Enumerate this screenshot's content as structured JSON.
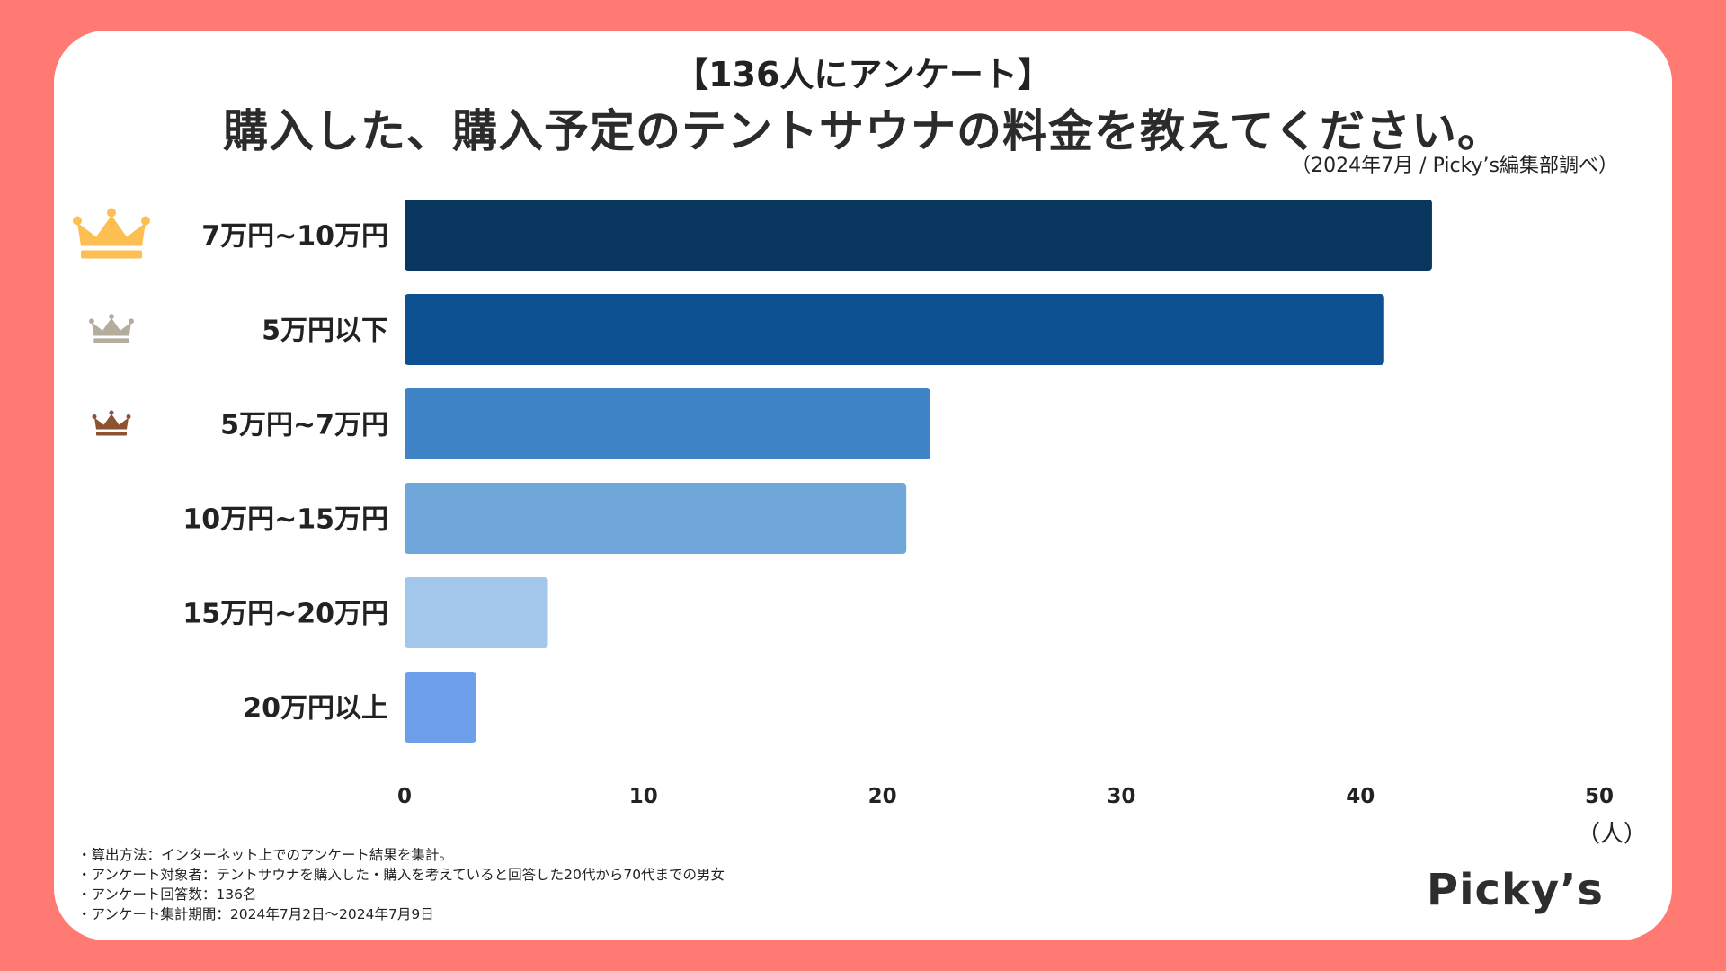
{
  "header": {
    "kicker": "【136人にアンケート】",
    "title": "購入した、購入予定のテントサウナの料金を教えてください。",
    "source": "（2024年7月 / Picky’s編集部調べ）"
  },
  "chart_data": {
    "type": "bar",
    "orientation": "horizontal",
    "categories": [
      "7万円~10万円",
      "5万円以下",
      "5万円~7万円",
      "10万円~15万円",
      "15万円~20万円",
      "20万円以上"
    ],
    "values": [
      43,
      41,
      22,
      21,
      6,
      3
    ],
    "bar_colors": [
      "#08365F",
      "#0E5193",
      "#3E84C6",
      "#6FA7DA",
      "#A3C7EA",
      "#6E9FEA"
    ],
    "rank_icons": [
      "crown-gold-icon",
      "crown-silver-icon",
      "crown-bronze-icon"
    ],
    "rank_colors": [
      "#FDBE52",
      "#B5AC9E",
      "#8E5230"
    ],
    "xlim": [
      0,
      50
    ],
    "xticks": [
      "0",
      "10",
      "20",
      "30",
      "40",
      "50"
    ],
    "xunit": "（人）",
    "title": "購入した、購入予定のテントサウナの料金を教えてください。"
  },
  "footer": {
    "notes": [
      "・算出方法：インターネット上でのアンケート結果を集計。",
      "・アンケート対象者：テントサウナを購入した・購入を考えていると回答した20代から70代までの男女",
      "・アンケート回答数：136名",
      "・アンケート集計期間：2024年7月2日〜2024年7月9日"
    ],
    "brand": "Picky’s"
  }
}
